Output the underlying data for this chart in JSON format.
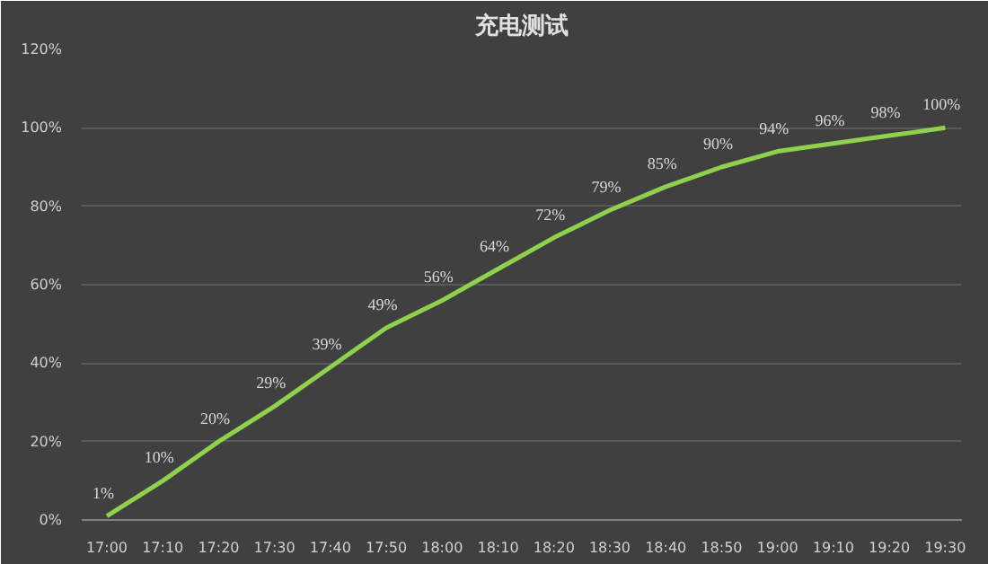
{
  "chart_data": {
    "type": "line",
    "title": "充电测试",
    "categories": [
      "17:00",
      "17:10",
      "17:20",
      "17:30",
      "17:40",
      "17:50",
      "18:00",
      "18:10",
      "18:20",
      "18:30",
      "18:40",
      "18:50",
      "19:00",
      "19:10",
      "19:20",
      "19:30"
    ],
    "series": [
      {
        "color": "#8fd14f",
        "values": [
          1,
          10,
          20,
          29,
          39,
          49,
          56,
          64,
          72,
          79,
          85,
          90,
          94,
          96,
          98,
          100
        ],
        "value_labels": [
          "1%",
          "10%",
          "20%",
          "29%",
          "39%",
          "49%",
          "56%",
          "64%",
          "72%",
          "79%",
          "85%",
          "90%",
          "94%",
          "96%",
          "98%",
          "100%"
        ]
      }
    ],
    "ylim": [
      0,
      120
    ],
    "yticks": [
      {
        "value": 0,
        "label": "0%"
      },
      {
        "value": 20,
        "label": "20%"
      },
      {
        "value": 40,
        "label": "40%"
      },
      {
        "value": 60,
        "label": "60%"
      },
      {
        "value": 80,
        "label": "80%"
      },
      {
        "value": 100,
        "label": "100%"
      },
      {
        "value": 120,
        "label": "120%"
      }
    ],
    "grid": "y",
    "marker": "none",
    "line_style": "solid"
  }
}
